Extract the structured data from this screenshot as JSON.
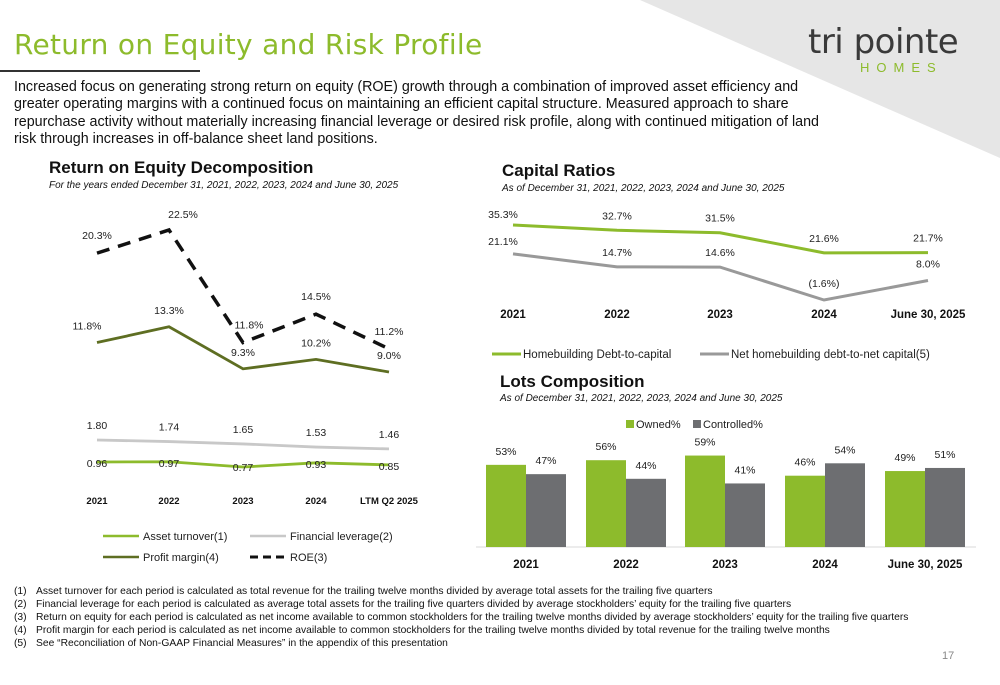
{
  "header": {
    "title": "Return on Equity and Risk Profile",
    "logo_main": "tri pointe",
    "logo_sub": "HOMES",
    "intro": "Increased focus on generating strong return on equity (ROE) growth through a combination of improved asset efficiency and greater operating margins with a continued focus on maintaining an efficient capital structure. Measured approach to share repurchase activity without materially increasing financial leverage or desired risk profile, along with continued mitigation of land risk through increases in off-balance sheet land positions."
  },
  "colors": {
    "brand_green": "#8dbb2c",
    "dark_olive": "#5e6e22",
    "gray_line": "#999999",
    "light_gray": "#c8c8c8",
    "bar_gray": "#6d6e71"
  },
  "sections": {
    "roe": {
      "title": "Return on Equity Decomposition",
      "subtitle": "For the years ended December 31, 2021, 2022, 2023, 2024 and June 30, 2025"
    },
    "capital": {
      "title": "Capital Ratios",
      "subtitle": "As of December 31, 2021, 2022, 2023, 2024 and June 30, 2025"
    },
    "lots": {
      "title": "Lots Composition",
      "subtitle": "As of December 31, 2021, 2022, 2023, 2024 and June 30, 2025"
    }
  },
  "chart_data": [
    {
      "type": "line",
      "id": "roe-top",
      "categories": [
        "2021",
        "2022",
        "2023",
        "2024",
        "LTM Q2 2025"
      ],
      "series": [
        {
          "name": "ROE(3)",
          "values": [
            20.3,
            22.5,
            11.8,
            14.5,
            11.2
          ],
          "labels": [
            "20.3%",
            "22.5%",
            "11.8%",
            "14.5%",
            "11.2%"
          ]
        },
        {
          "name": "Profit margin(4)",
          "values": [
            11.8,
            13.3,
            9.3,
            10.2,
            9.0
          ],
          "labels": [
            "11.8%",
            "13.3%",
            "9.3%",
            "10.2%",
            "9.0%"
          ]
        }
      ]
    },
    {
      "type": "line",
      "id": "roe-bottom",
      "categories": [
        "2021",
        "2022",
        "2023",
        "2024",
        "LTM Q2 2025"
      ],
      "series": [
        {
          "name": "Financial leverage(2)",
          "values": [
            1.8,
            1.74,
            1.65,
            1.53,
            1.46
          ],
          "labels": [
            "1.80",
            "1.74",
            "1.65",
            "1.53",
            "1.46"
          ]
        },
        {
          "name": "Asset turnover(1)",
          "values": [
            0.96,
            0.97,
            0.77,
            0.93,
            0.85
          ],
          "labels": [
            "0.96",
            "0.97",
            "0.77",
            "0.93",
            "0.85"
          ]
        }
      ],
      "legend": [
        "Asset turnover(1)",
        "Financial leverage(2)",
        "Profit margin(4)",
        "ROE(3)"
      ]
    },
    {
      "type": "line",
      "id": "capital",
      "categories": [
        "2021",
        "2022",
        "2023",
        "2024",
        "June 30, 2025"
      ],
      "series": [
        {
          "name": "Homebuilding Debt-to-capital",
          "values": [
            35.3,
            32.7,
            31.5,
            21.6,
            21.7
          ],
          "labels": [
            "35.3%",
            "32.7%",
            "31.5%",
            "21.6%",
            "21.7%"
          ]
        },
        {
          "name": "Net homebuilding debt-to-net capital(5)",
          "values": [
            21.1,
            14.7,
            14.6,
            -1.6,
            8.0
          ],
          "labels": [
            "21.1%",
            "14.7%",
            "14.6%",
            "(1.6%)",
            "8.0%"
          ]
        }
      ]
    },
    {
      "type": "bar",
      "id": "lots",
      "categories": [
        "2021",
        "2022",
        "2023",
        "2024",
        "June 30, 2025"
      ],
      "series": [
        {
          "name": "Owned%",
          "values": [
            53,
            56,
            59,
            46,
            49
          ],
          "labels": [
            "53%",
            "56%",
            "59%",
            "46%",
            "49%"
          ]
        },
        {
          "name": "Controlled%",
          "values": [
            47,
            44,
            41,
            54,
            51
          ],
          "labels": [
            "47%",
            "44%",
            "41%",
            "54%",
            "51%"
          ]
        }
      ]
    }
  ],
  "footnotes": [
    {
      "num": "(1)",
      "text": "Asset turnover for each period is calculated as total revenue for the trailing twelve months divided by average total assets for the trailing five quarters"
    },
    {
      "num": "(2)",
      "text": "Financial leverage for each period is calculated as average total assets for the trailing five quarters divided by average stockholders’ equity for the trailing five quarters"
    },
    {
      "num": "(3)",
      "text": "Return on equity for each period is calculated as net income available to common stockholders for the trailing twelve months divided by average stockholders’ equity for the trailing five quarters"
    },
    {
      "num": "(4)",
      "text": "Profit margin for each period is calculated as net income available to common stockholders for the trailing twelve months divided by total revenue for the trailing twelve months"
    },
    {
      "num": "(5)",
      "text": "See “Reconciliation of Non-GAAP Financial Measures” in the appendix of this presentation"
    }
  ],
  "page_number": "17"
}
